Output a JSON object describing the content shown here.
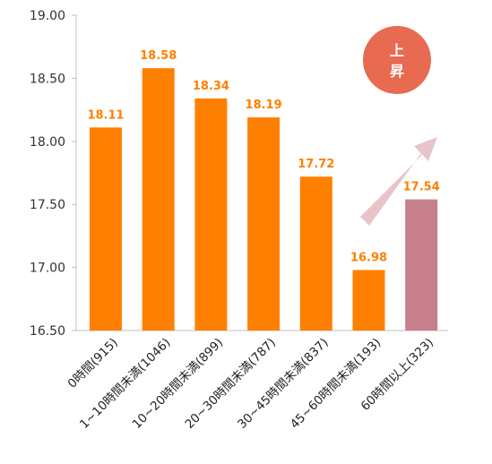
{
  "chart_data": {
    "type": "bar",
    "categories": [
      "0時間(915)",
      "1~10時間未満(1046)",
      "10~20時間未満(899)",
      "20~30時間未満(787)",
      "30~45時間未満(837)",
      "45~60時間未満(193)",
      "60時間以上(323)"
    ],
    "values": [
      18.11,
      18.58,
      18.34,
      18.19,
      17.72,
      16.98,
      17.54
    ],
    "value_labels": [
      "18.11",
      "18.58",
      "18.34",
      "18.19",
      "17.72",
      "16.98",
      "17.54"
    ],
    "ylim": [
      16.5,
      19.0
    ],
    "yticks": [
      16.5,
      17.0,
      17.5,
      18.0,
      18.5,
      19.0
    ],
    "ytick_labels": [
      "16.50",
      "17.00",
      "17.50",
      "18.00",
      "18.50",
      "19.00"
    ],
    "grid": false,
    "legend": "none",
    "highlight_index": 6,
    "colors": {
      "bar": "#FF8000",
      "highlight_bar": "#C77F8C",
      "label": "#FF8000",
      "axis": "#BFBFBF",
      "arrow": "#E8C4C9",
      "badge": "#E86A50"
    },
    "annotation": {
      "badge_text_line1": "上",
      "badge_text_line2": "昇"
    }
  }
}
